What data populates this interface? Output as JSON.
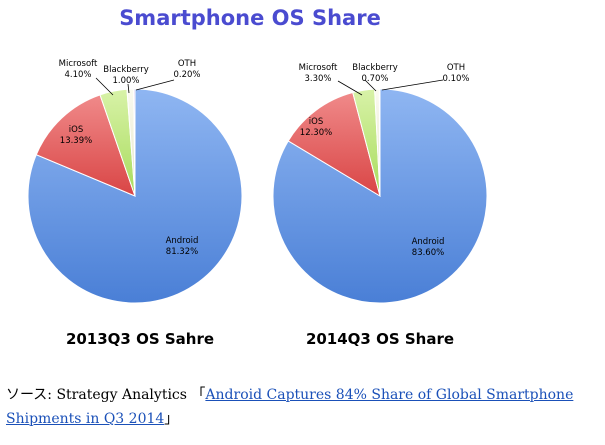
{
  "title": "Smartphone OS Share",
  "source": {
    "prefix": "ソース: Strategy Analytics 「",
    "link_text": "Android Captures 84% Share of Global Smartphone Shipments in Q3 2014",
    "suffix": "」"
  },
  "colors": {
    "Android": "#5b8fe0",
    "iOS": "#e05a5a",
    "Microsoft": "#bde77a",
    "Blackberry": "#f2f2d8",
    "OTH": "#b79bd6"
  },
  "chart_data": [
    {
      "type": "pie",
      "title": "2013Q3 OS Sahre",
      "slices": [
        {
          "label": "Android",
          "value": 81.32,
          "text": "81.32%"
        },
        {
          "label": "iOS",
          "value": 13.39,
          "text": "13.39%"
        },
        {
          "label": "Microsoft",
          "value": 4.1,
          "text": "4.10%"
        },
        {
          "label": "Blackberry",
          "value": 1.0,
          "text": "1.00%"
        },
        {
          "label": "OTH",
          "value": 0.2,
          "text": "0.20%"
        }
      ]
    },
    {
      "type": "pie",
      "title": "2014Q3 OS Share",
      "slices": [
        {
          "label": "Android",
          "value": 83.6,
          "text": "83.60%"
        },
        {
          "label": "iOS",
          "value": 12.3,
          "text": "12.30%"
        },
        {
          "label": "Microsoft",
          "value": 3.3,
          "text": "3.30%"
        },
        {
          "label": "Blackberry",
          "value": 0.7,
          "text": "0.70%"
        },
        {
          "label": "OTH",
          "value": 0.1,
          "text": "0.10%"
        }
      ]
    }
  ]
}
